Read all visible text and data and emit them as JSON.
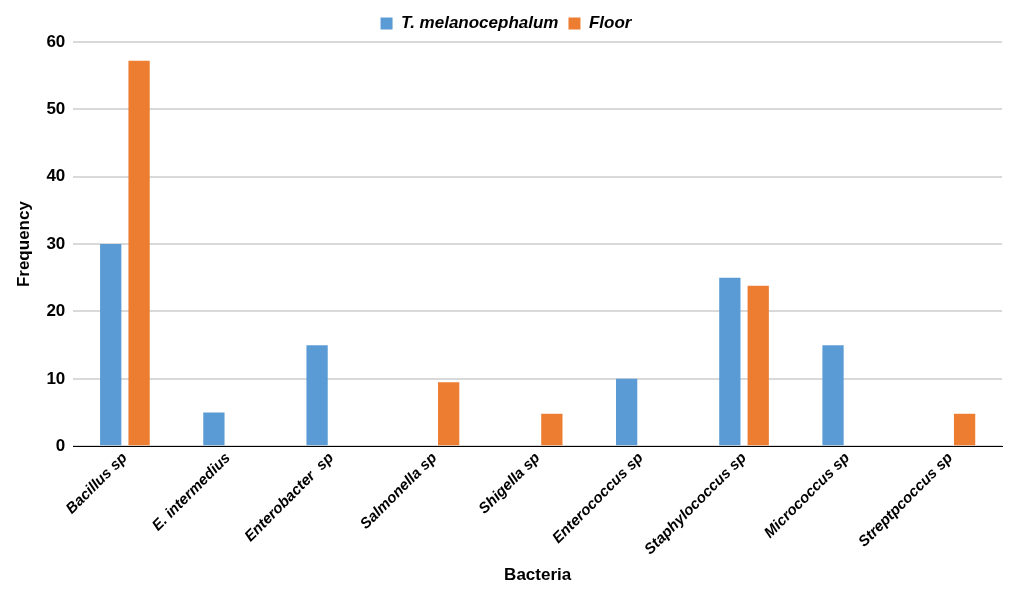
{
  "chart_data": {
    "type": "bar",
    "categories": [
      "Bacillus sp",
      "E. intermedius",
      "Enterobacter  sp",
      "Salmonella sp",
      "Shigella sp",
      "Enterococcus sp",
      "Staphylococcus sp",
      "Micrococcus sp",
      "Streptpcoccus sp"
    ],
    "series": [
      {
        "name": "T. melanocephalum",
        "color": "#5b9bd5",
        "values": [
          30,
          5,
          15,
          0,
          0,
          10,
          25,
          15,
          0
        ]
      },
      {
        "name": "Floor",
        "color": "#ed7d31",
        "values": [
          57.2,
          0,
          0,
          9.5,
          4.8,
          0,
          23.8,
          0,
          4.8
        ]
      }
    ],
    "xlabel": "Bacteria",
    "ylabel": "Frequency",
    "ylim": [
      0,
      60
    ],
    "yticks": [
      0,
      10,
      20,
      30,
      40,
      50,
      60
    ],
    "grid": "y",
    "legend": "top"
  }
}
